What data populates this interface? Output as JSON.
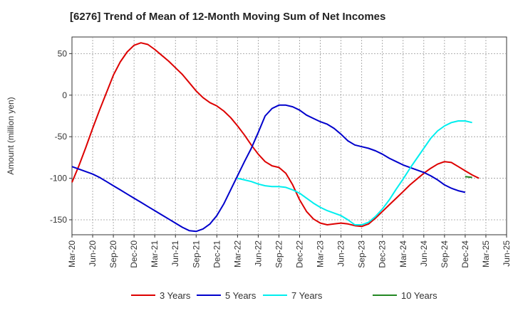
{
  "chart_data": {
    "type": "line",
    "title": "[6276]  Trend of Mean of 12-Month Moving Sum of Net Incomes",
    "ylabel": "Amount (million yen)",
    "xlabel": "",
    "ylim": [
      -168,
      70
    ],
    "yticks": [
      50,
      0,
      -50,
      -100,
      -150
    ],
    "xticks": [
      "Mar-20",
      "Jun-20",
      "Sep-20",
      "Dec-20",
      "Mar-21",
      "Jun-21",
      "Sep-21",
      "Dec-21",
      "Mar-22",
      "Jun-22",
      "Sep-22",
      "Dec-22",
      "Mar-23",
      "Jun-23",
      "Sep-23",
      "Dec-23",
      "Mar-24",
      "Jun-24",
      "Sep-24",
      "Dec-24",
      "Mar-25",
      "Jun-25"
    ],
    "grid": true,
    "legend_position": "bottom",
    "series": [
      {
        "name": "3 Years",
        "color": "#dd0000",
        "start_month": 0,
        "values": [
          -105,
          -85,
          -63,
          -40,
          -18,
          3,
          24,
          40,
          52,
          60,
          63,
          61,
          55,
          48,
          41,
          33,
          25,
          15,
          5,
          -3,
          -9,
          -13,
          -19,
          -27,
          -37,
          -48,
          -60,
          -71,
          -80,
          -85,
          -87,
          -94,
          -108,
          -126,
          -140,
          -149,
          -154,
          -156,
          -155,
          -154,
          -155,
          -157,
          -158,
          -155,
          -148,
          -140,
          -132,
          -124,
          -116,
          -108,
          -101,
          -94,
          -88,
          -83,
          -80,
          -81,
          -86,
          -91,
          -96,
          -100
        ]
      },
      {
        "name": "5 Years",
        "color": "#0000cc",
        "start_month": 0,
        "values": [
          -86,
          -89,
          -92,
          -95,
          -99,
          -104,
          -109,
          -114,
          -119,
          -124,
          -129,
          -134,
          -139,
          -144,
          -149,
          -154,
          -159,
          -163,
          -164,
          -161,
          -155,
          -145,
          -131,
          -114,
          -97,
          -80,
          -64,
          -45,
          -25,
          -16,
          -12,
          -12,
          -14,
          -18,
          -24,
          -28,
          -32,
          -35,
          -40,
          -47,
          -55,
          -60,
          -62,
          -64,
          -67,
          -71,
          -76,
          -80,
          -84,
          -87,
          -90,
          -93,
          -97,
          -102,
          -108,
          -112,
          -115,
          -117
        ]
      },
      {
        "name": "7 Years",
        "color": "#00eeee",
        "start_month": 24,
        "values": [
          -100,
          -102,
          -104,
          -107,
          -109,
          -110,
          -110,
          -111,
          -114,
          -118,
          -124,
          -130,
          -135,
          -139,
          -142,
          -145,
          -150,
          -156,
          -156,
          -153,
          -146,
          -137,
          -126,
          -113,
          -101,
          -88,
          -76,
          -64,
          -52,
          -43,
          -37,
          -33,
          -31,
          -31,
          -33
        ]
      },
      {
        "name": "10 Years",
        "color": "#228822",
        "start_month": 57,
        "values": [
          -98,
          -99
        ]
      }
    ]
  }
}
